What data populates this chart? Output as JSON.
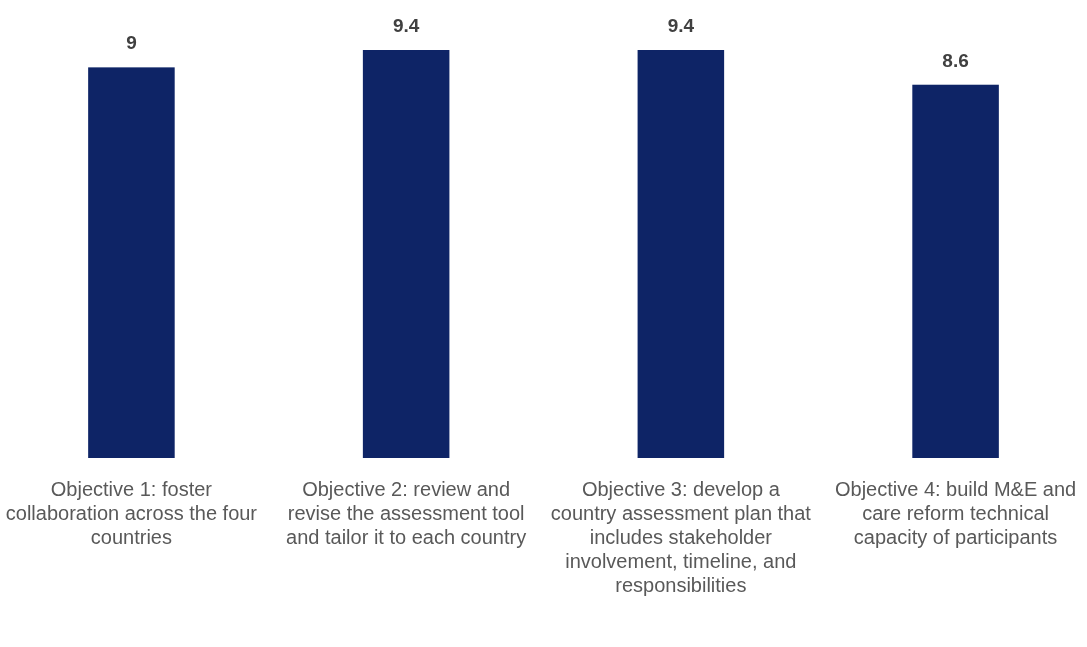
{
  "chart_data": {
    "type": "bar",
    "categories": [
      "Objective 1: foster collaboration across the four countries",
      "Objective 2: review and revise the assessment tool and tailor it to each country",
      "Objective 3: develop a country assessment plan that includes stakeholder involvement, timeline, and responsibilities",
      "Objective 4: build M&E and care reform technical capacity of participants"
    ],
    "values": [
      9,
      9.4,
      9.4,
      8.6
    ],
    "color": "#0e2466",
    "data_labels": true
  }
}
